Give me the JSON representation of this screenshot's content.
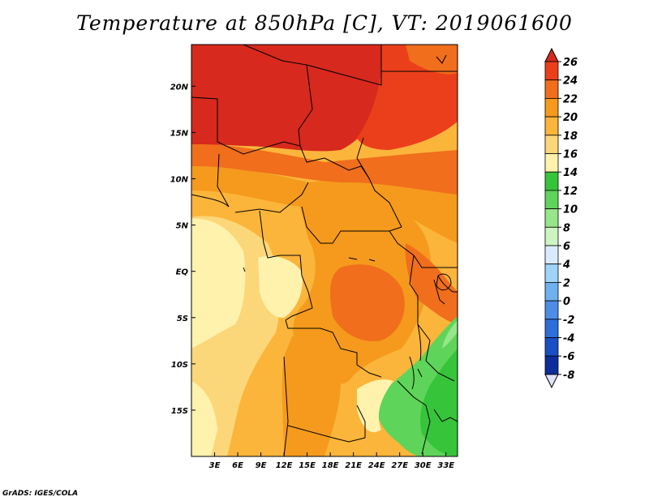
{
  "title": "Temperature at 850hPa [C], VT: 2019061600",
  "credit": "GrADS: IGES/COLA",
  "map": {
    "lon_range": [
      0,
      34.5
    ],
    "lat_range": [
      -20,
      24.5
    ],
    "x_ticks": [
      "3E",
      "6E",
      "9E",
      "12E",
      "15E",
      "18E",
      "21E",
      "24E",
      "27E",
      "30E",
      "33E"
    ],
    "x_tick_values": [
      3,
      6,
      9,
      12,
      15,
      18,
      21,
      24,
      27,
      30,
      33
    ],
    "y_ticks": [
      "20N",
      "15N",
      "10N",
      "5N",
      "EQ",
      "5S",
      "10S",
      "15S"
    ],
    "y_tick_values": [
      20,
      15,
      10,
      5,
      0,
      -5,
      -10,
      -15
    ],
    "field": "temperature",
    "units": "C"
  },
  "colorbar": {
    "labels": [
      "26",
      "24",
      "22",
      "20",
      "18",
      "16",
      "14",
      "12",
      "10",
      "8",
      "6",
      "4",
      "2",
      "0",
      "-2",
      "-4",
      "-6",
      "-8"
    ],
    "colors": [
      "#d7291d",
      "#eb3f1b",
      "#f06e1c",
      "#f59a1c",
      "#fbb53b",
      "#fcd77a",
      "#fff2ad",
      "#36c43b",
      "#5fd45a",
      "#97e689",
      "#cdf5c2",
      "#d9ecff",
      "#9fd3f7",
      "#6fb1ee",
      "#4c8ee5",
      "#2c6fd9",
      "#1a4fc4",
      "#0d2d9a",
      "#0b1b6e",
      "#e0e0ff"
    ]
  }
}
